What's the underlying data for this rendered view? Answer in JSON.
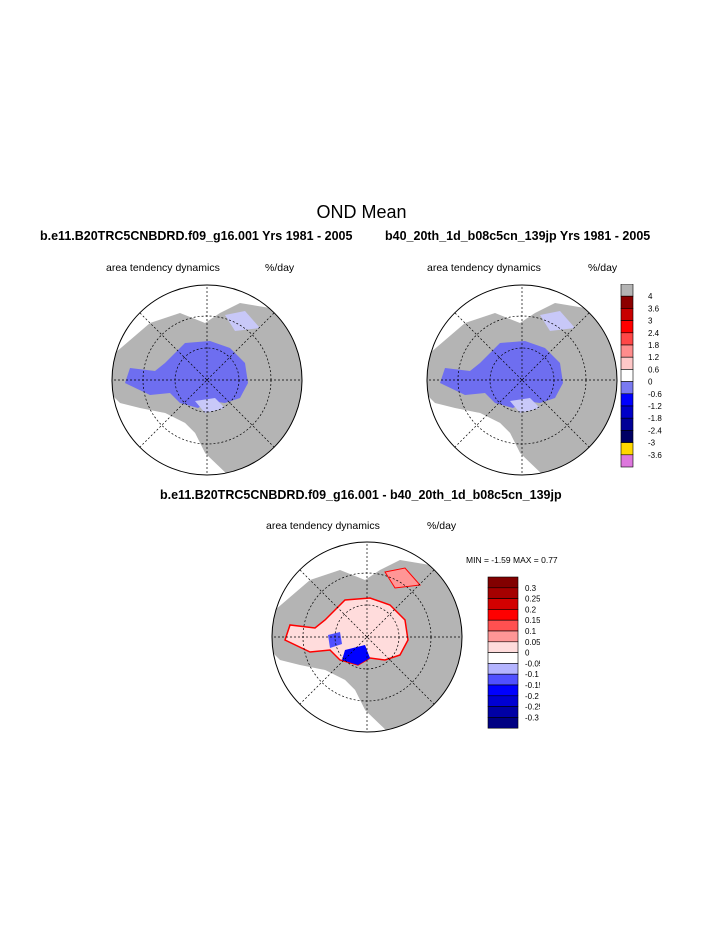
{
  "title": "OND Mean",
  "panels": [
    {
      "run_title": "b.e11.B20TRC5CNBDRD.f09_g16.001  Yrs 1981 - 2005",
      "variable": "area tendency dynamics",
      "units": "%/day"
    },
    {
      "run_title": "b40_20th_1d_b08c5cn_139jp  Yrs 1981 - 2005",
      "variable": "area tendency dynamics",
      "units": "%/day"
    }
  ],
  "diff_panel": {
    "title": "b.e11.B20TRC5CNBDRD.f09_g16.001 - b40_20th_1d_b08c5cn_139jp",
    "variable": "area tendency dynamics",
    "units": "%/day",
    "stats": "MIN =  -1.59 MAX =   0.77"
  },
  "colorbar_top": {
    "labels": [
      "4",
      "3.6",
      "3",
      "2.4",
      "1.8",
      "1.2",
      "0.6",
      "0",
      "-0.6",
      "-1.2",
      "-1.8",
      "-2.4",
      "-3",
      "-3.6"
    ],
    "colors": [
      "#b4b4b4",
      "#8c0000",
      "#c80000",
      "#ff0000",
      "#ff4646",
      "#ff8c8c",
      "#ffc8c8",
      "#ffffff",
      "#7a7af0",
      "#0000ff",
      "#0000c8",
      "#000096",
      "#000064",
      "#ffd700",
      "#dd77dd"
    ]
  },
  "colorbar_diff": {
    "labels": [
      "0.3",
      "0.25",
      "0.2",
      "0.15",
      "0.1",
      "0.05",
      "0",
      "-0.05",
      "-0.1",
      "-0.15",
      "-0.2",
      "-0.25",
      "-0.3"
    ],
    "colors": [
      "#820000",
      "#a50000",
      "#d20000",
      "#ff0000",
      "#ff5050",
      "#ff9696",
      "#ffdcdc",
      "#ffffff",
      "#b4b4ff",
      "#5050ff",
      "#0000ff",
      "#0000d2",
      "#0000a5",
      "#000082"
    ]
  },
  "map_colors": {
    "land": "#b4b4b4",
    "ocean": "#ffffff",
    "ice_mean": "#6e6ef0",
    "ice_light": "#c8c8f8",
    "diff_ice": "#ffdcdc",
    "diff_pos": "#ff0000",
    "diff_neg": "#0000ff"
  }
}
